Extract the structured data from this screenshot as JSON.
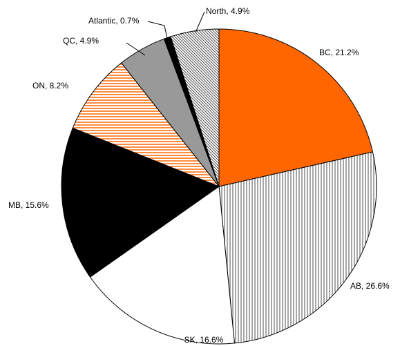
{
  "chart_data": {
    "type": "pie",
    "values": [
      21.2,
      26.6,
      16.6,
      15.6,
      8.2,
      4.9,
      0.7,
      4.9
    ],
    "value_labels": [
      "BC, 21.2%",
      "AB, 26.6%",
      "SK, 16.6%",
      "MB, 15.6%",
      "ON, 8.2%",
      "QC, 4.9%",
      "Atlantic, 0.7%",
      "North, 4.9%"
    ],
    "colors": [
      "#ff6600",
      "#888888",
      "#ffffff",
      "#000000",
      "#ff6600",
      "#999999",
      "#000000",
      "#555555"
    ],
    "patterns": [
      "solid",
      "vertical",
      "solid",
      "solid",
      "horizontal",
      "solid",
      "solid",
      "diagonal"
    ]
  }
}
